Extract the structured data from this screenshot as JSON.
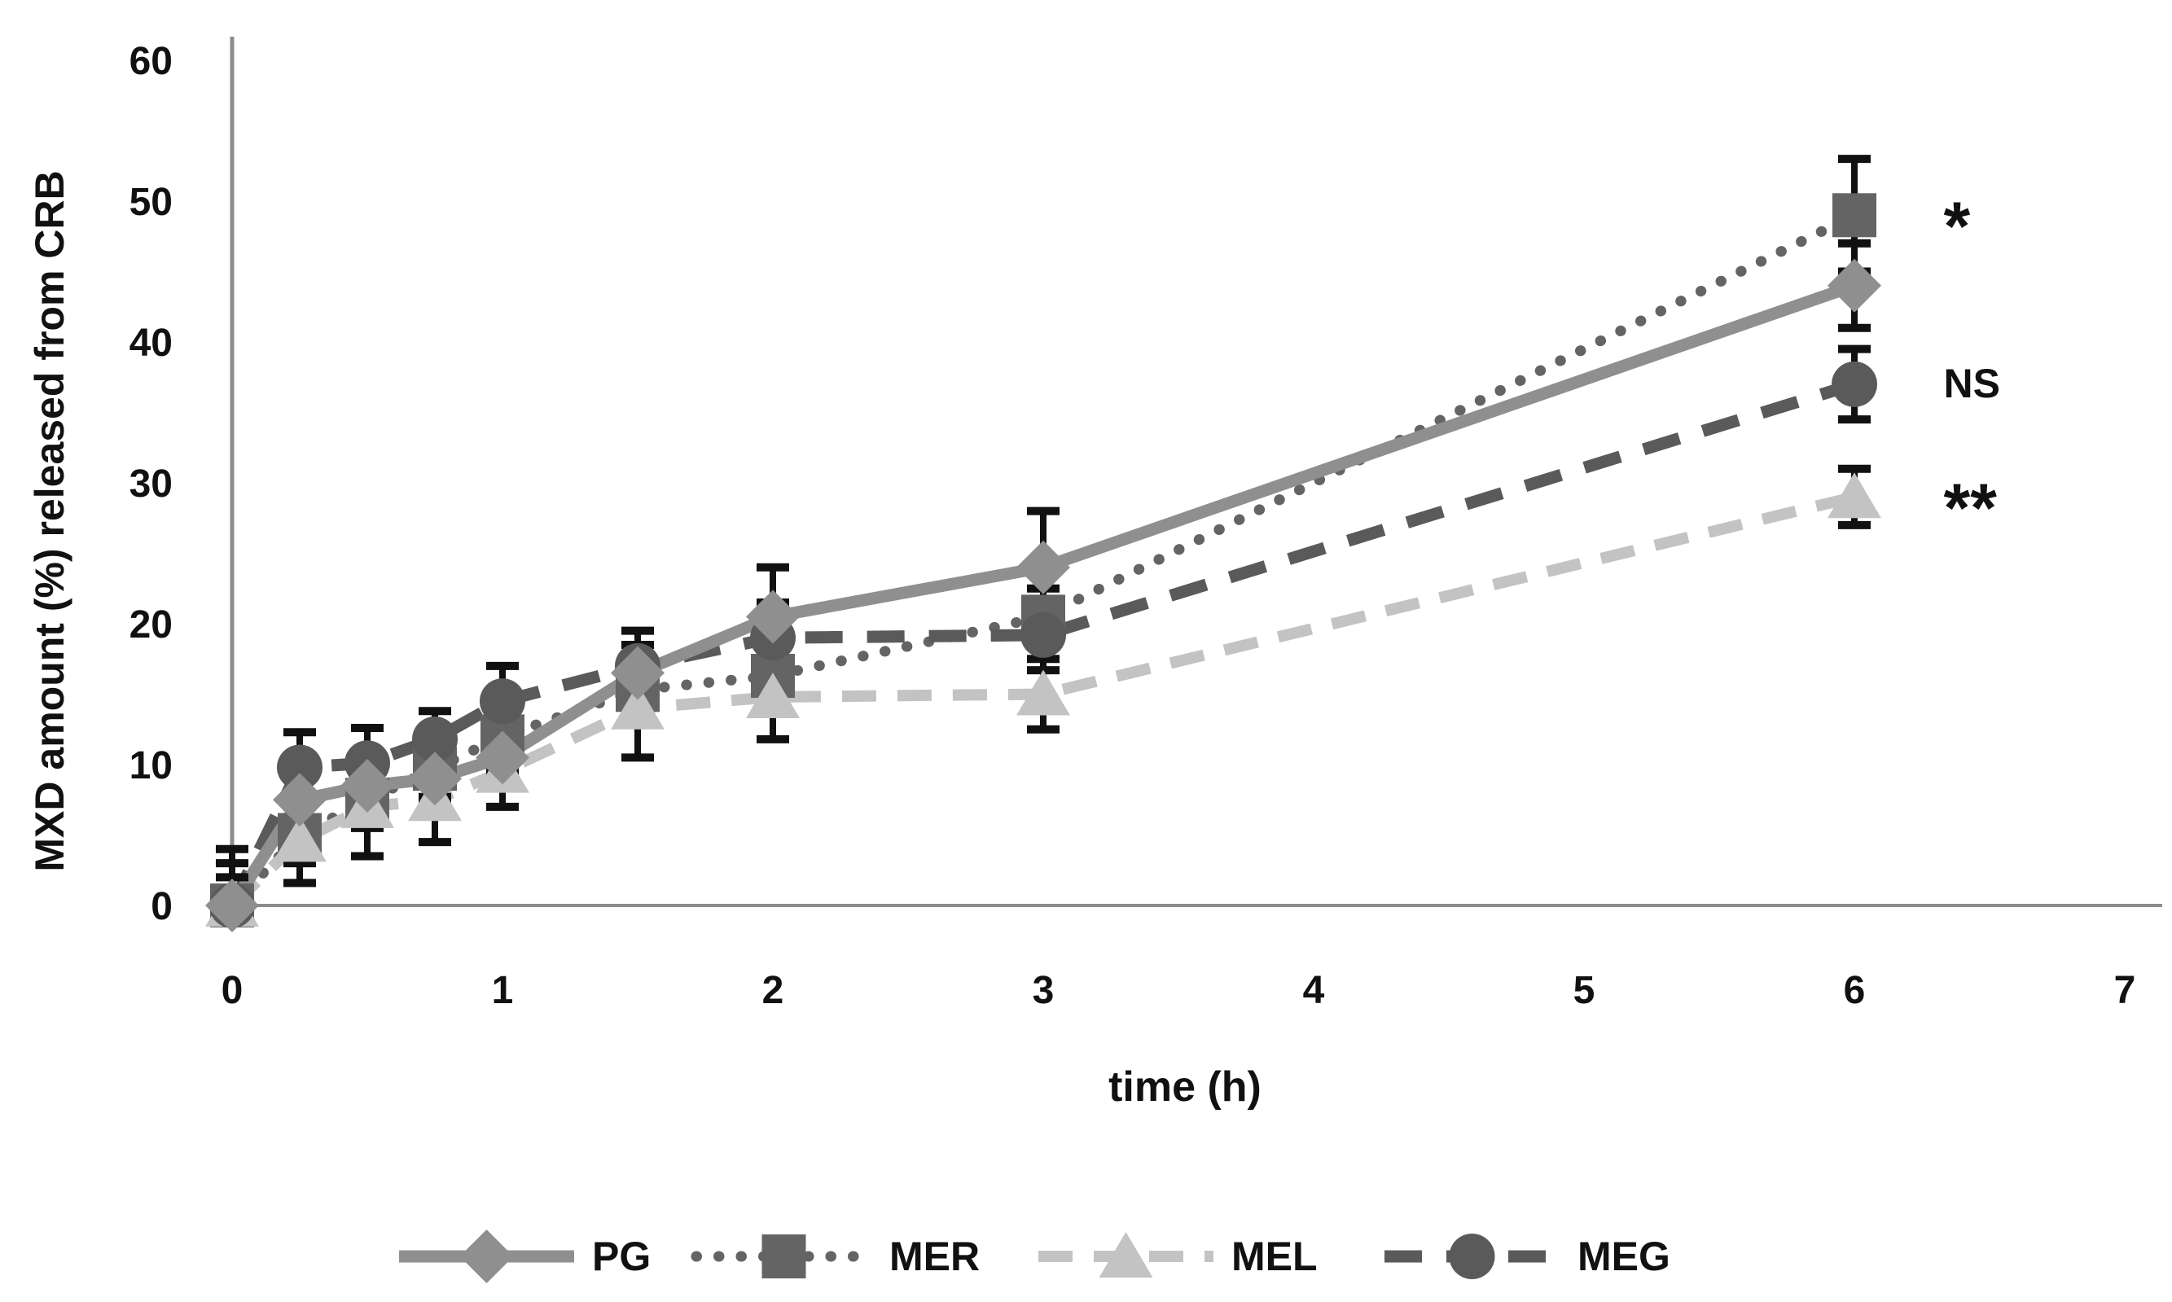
{
  "figure": {
    "y_axis_title": "MXD amount (%) released from CRB",
    "x_axis_title": "time (h)"
  },
  "chart_data": {
    "type": "line",
    "title": "",
    "ylabel": "MXD amount (%) released from CRB",
    "xlabel": "time (h)",
    "ylim": [
      0,
      60
    ],
    "xlim": [
      0,
      7
    ],
    "grid": false,
    "legend_position": "bottom",
    "yticks": [
      "0",
      "10",
      "20",
      "30",
      "40",
      "50",
      "60"
    ],
    "ytick_values": [
      0,
      10,
      20,
      30,
      40,
      50,
      60
    ],
    "xticks": [
      "0",
      "1",
      "2",
      "3",
      "4",
      "5",
      "6",
      "7"
    ],
    "xtick_values": [
      0,
      1,
      2,
      3,
      4,
      5,
      6,
      7
    ],
    "x": [
      0,
      0.25,
      0.5,
      0.75,
      1,
      1.5,
      2,
      3,
      6
    ],
    "series": [
      {
        "name": "PG",
        "marker": "diamond",
        "line_style": "solid",
        "color": "#8f8f8f",
        "values": [
          0,
          7.5,
          8.5,
          9,
          10.5,
          16.5,
          20.5,
          24,
          44
        ],
        "errors": [
          0,
          1.5,
          1.5,
          1.5,
          1.5,
          2,
          3.5,
          4,
          3
        ]
      },
      {
        "name": "MER",
        "marker": "square",
        "line_style": "dotted",
        "color": "#646464",
        "values": [
          0,
          5,
          7.5,
          9.7,
          12,
          15.3,
          16.3,
          20.5,
          49
        ],
        "errors": [
          2,
          2,
          2,
          2,
          2.5,
          2.5,
          2.5,
          2,
          4
        ]
      },
      {
        "name": "MEL",
        "marker": "triangle",
        "line_style": "dash",
        "color": "#c3c3c3",
        "values": [
          0,
          4.6,
          7,
          7.5,
          9.5,
          14,
          14.8,
          15,
          29
        ],
        "errors": [
          3,
          3,
          3.5,
          3,
          2.5,
          3.5,
          3,
          2.5,
          2
        ]
      },
      {
        "name": "MEG",
        "marker": "circle",
        "line_style": "dash-long",
        "color": "#5a5a5a",
        "values": [
          0,
          9.8,
          10.1,
          11.8,
          14.5,
          17,
          19,
          19.2,
          37
        ],
        "errors": [
          4,
          2.5,
          2.5,
          2,
          2.5,
          2.5,
          2.5,
          2.5,
          2.5
        ]
      }
    ],
    "annotations": [
      {
        "text": "*",
        "series": "MER",
        "x": 6.33,
        "y": 49
      },
      {
        "text": "NS",
        "series": "MEG",
        "x": 6.33,
        "y": 37
      },
      {
        "text": "**",
        "series": "MEL",
        "x": 6.33,
        "y": 29
      }
    ],
    "legend": [
      "PG",
      "MER",
      "MEL",
      "MEG"
    ],
    "error_bar_color": "#111111",
    "axis_color": "#8c8c8c",
    "text_color": "#111111"
  }
}
